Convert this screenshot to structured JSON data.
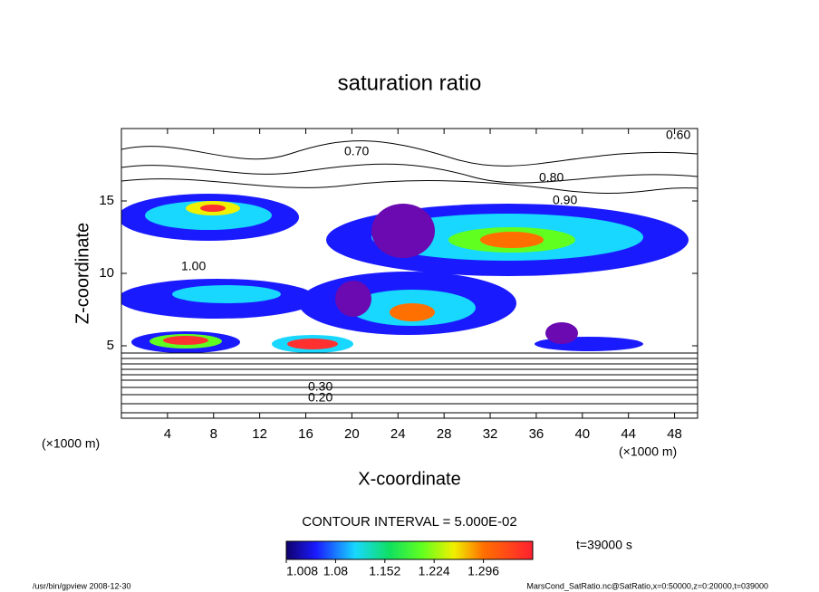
{
  "chart_data": {
    "type": "contour",
    "title": "saturation ratio",
    "xlabel": "X-coordinate",
    "ylabel": "Z-coordinate",
    "x_unit": "(×1000 m)",
    "xlim": [
      0,
      50
    ],
    "xticks": [
      4,
      8,
      12,
      16,
      20,
      24,
      28,
      32,
      36,
      40,
      44,
      48
    ],
    "ylim": [
      0,
      20
    ],
    "yticks": [
      5,
      10,
      15
    ],
    "contour_interval": "CONTOUR INTERVAL = 5.000E-02",
    "time_label": "t=39000 s",
    "colorbar": {
      "clim": [
        1.008,
        1.368
      ],
      "ticks": [
        1.008,
        1.08,
        1.152,
        1.224,
        1.296
      ]
    },
    "contour_labels": [
      "0.20",
      "0.30",
      "0.60",
      "0.70",
      "0.80",
      "0.90",
      "1.00"
    ],
    "footer_left": "/usr/bin/gpview  2008-12-30",
    "footer_right": "MarsCond_SatRatio.nc@SatRatio,x=0:50000,z=0:20000,t=039000"
  }
}
